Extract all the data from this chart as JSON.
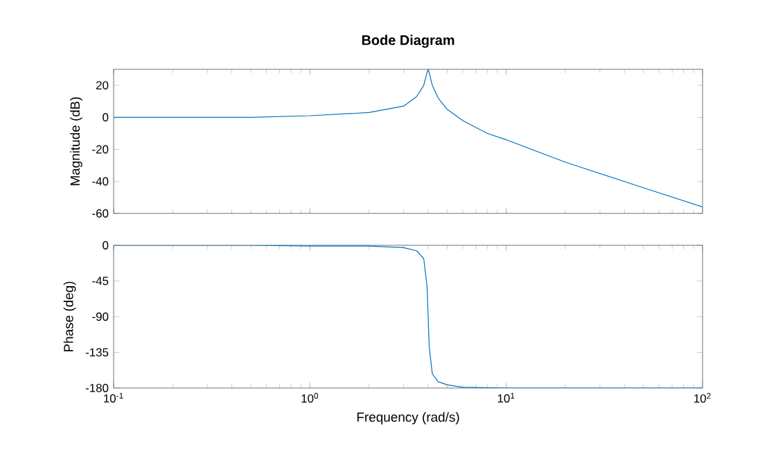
{
  "chart_data": [
    {
      "type": "line",
      "title": "Bode Diagram",
      "ylabel": "Magnitude (dB)",
      "log": "x",
      "marker": "none",
      "line_style": "solid",
      "color": "#0072bd",
      "tick_labels": "y",
      "x": [
        0.1,
        0.2,
        0.3,
        0.5,
        1,
        2,
        3,
        3.5,
        3.8,
        3.95,
        4,
        4.05,
        4.2,
        4.5,
        5,
        6,
        8,
        10,
        20,
        50,
        100
      ],
      "values": [
        0,
        0,
        0,
        0,
        1,
        3,
        7,
        13,
        20,
        28,
        30,
        28,
        20,
        12,
        5,
        -2,
        -10,
        -14,
        -28,
        -44,
        -56
      ],
      "xlim": [
        0.1,
        100
      ],
      "xticks": [
        {
          "value": 0.1,
          "label": null
        },
        {
          "value": 1,
          "label": null
        },
        {
          "value": 10,
          "label": null
        },
        {
          "value": 100,
          "label": null
        }
      ],
      "ylim": [
        -60,
        30
      ],
      "yticks": [
        -60,
        -40,
        -20,
        0,
        20
      ]
    },
    {
      "type": "line",
      "xlabel": "Frequency (rad/s)",
      "ylabel": "Phase (deg)",
      "log": "x",
      "marker": "none",
      "line_style": "solid",
      "color": "#0072bd",
      "x": [
        0.1,
        0.5,
        1,
        2,
        3,
        3.5,
        3.8,
        3.95,
        4,
        4.05,
        4.2,
        4.5,
        5,
        6,
        10,
        100
      ],
      "values": [
        0,
        0,
        -1,
        -1,
        -3,
        -7,
        -17,
        -52,
        -90,
        -128,
        -162,
        -172,
        -176,
        -179,
        -180,
        -180
      ],
      "xlim": [
        0.1,
        100
      ],
      "xticks": [
        {
          "value": 0.1,
          "label": "10$^{-1}$"
        },
        {
          "value": 1,
          "label": "10$^{0}$"
        },
        {
          "value": 10,
          "label": "10$^{1}$"
        },
        {
          "value": 100,
          "label": "10$^{2}$"
        }
      ],
      "ylim": [
        -180,
        0
      ],
      "yticks": [
        -180,
        -135,
        -90,
        -45,
        0
      ]
    }
  ]
}
